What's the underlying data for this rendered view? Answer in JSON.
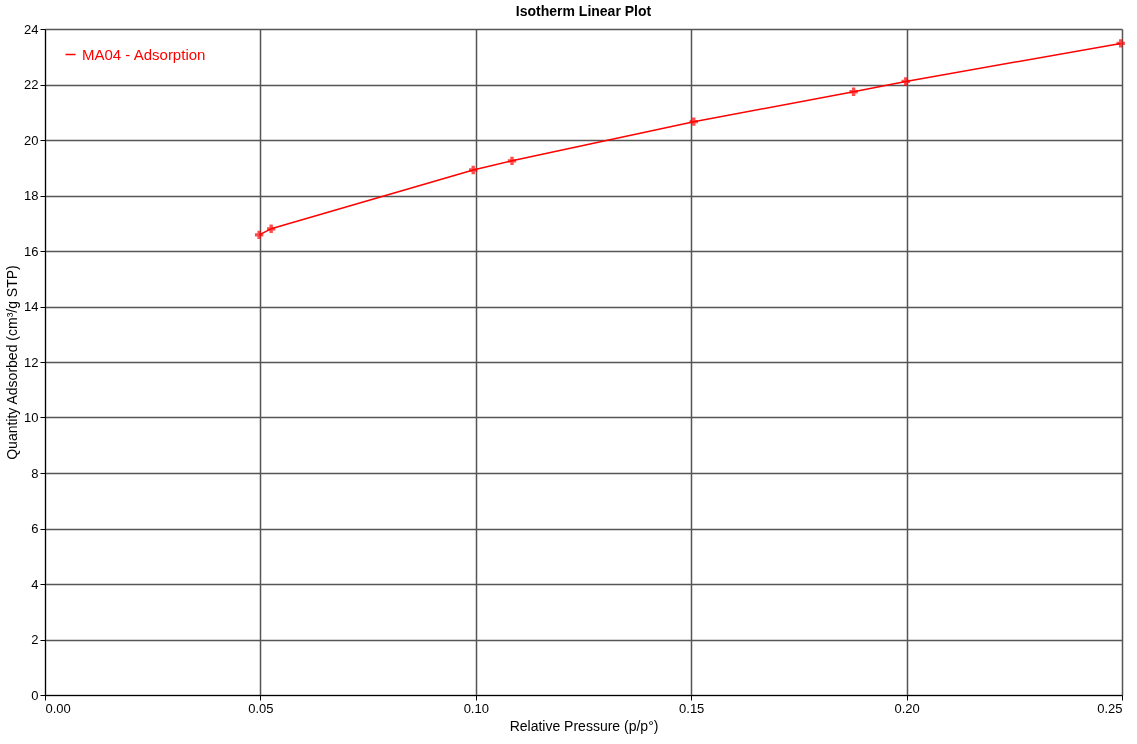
{
  "chart_data": {
    "type": "line",
    "title": "Isotherm Linear Plot",
    "xlabel": "Relative Pressure (p/p°)",
    "ylabel": "Quantity Adsorbed (cm³/g STP)",
    "x": [
      0.0497,
      0.0525,
      0.0994,
      0.1084,
      0.1506,
      0.1877,
      0.1998,
      0.2497
    ],
    "series": [
      {
        "name": "MA04 - Adsorption",
        "color": "#ff0000",
        "values": [
          16.58,
          16.8,
          18.92,
          19.25,
          20.66,
          21.74,
          22.11,
          23.48
        ]
      }
    ],
    "xlim": [
      0,
      0.25
    ],
    "xticks": [
      {
        "value": 0,
        "label": "0.00"
      },
      0.05,
      {
        "value": 0.1,
        "label": "0.10"
      },
      0.15,
      {
        "value": 0.2,
        "label": "0.20"
      },
      0.25
    ],
    "ylim": [
      0,
      24
    ],
    "yticks": [
      0,
      2,
      4,
      6,
      8,
      10,
      12,
      14,
      16,
      18,
      20,
      22,
      24
    ],
    "grid": true,
    "legend": "top left",
    "marker": "cross",
    "line_style": "solid"
  }
}
